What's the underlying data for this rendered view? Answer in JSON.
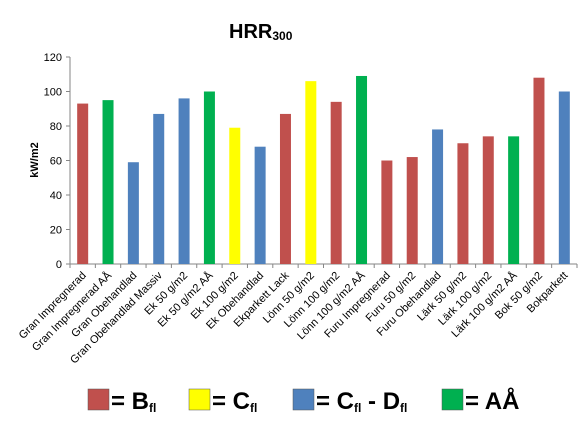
{
  "chart_data": {
    "type": "bar",
    "title": "HRR",
    "title_subscript": "300",
    "ylabel": "kW/m2",
    "xlabel": "",
    "ylim": [
      0,
      120
    ],
    "yticks": [
      "0",
      "20",
      "40",
      "60",
      "80",
      "100",
      "120"
    ],
    "grid": false,
    "categories": [
      "Gran Impregnerad",
      "Gran Impregnerad AÅ",
      "Gran Obehandlad",
      "Gran Obehandlad Massiv",
      "Ek 50 g/m2",
      "Ek 50 g/m2 AÅ",
      "Ek 100 g/m2",
      "Ek Obehandlad",
      "Ekparkett Lack",
      "Lönn 50 g/m2",
      "Lönn 100 g/m2",
      "Lönn 100 g/m2 AÅ",
      "Furu Impregnerad",
      "Furu 50 g/m2",
      "Furu Obehandlad",
      "Lärk 50 g/m2",
      "Lärk 100 g/m2",
      "Lärk 100 g/m2 AÅ",
      "Bok 50 g/m2",
      "Bokparkett"
    ],
    "values": [
      93,
      95,
      59,
      87,
      96,
      100,
      79,
      68,
      87,
      106,
      94,
      109,
      60,
      62,
      78,
      70,
      74,
      74,
      108,
      100
    ],
    "classes": [
      "B",
      "AA",
      "CD",
      "CD",
      "CD",
      "AA",
      "C",
      "CD",
      "B",
      "C",
      "B",
      "AA",
      "B",
      "B",
      "CD",
      "B",
      "B",
      "AA",
      "B",
      "CD"
    ],
    "class_colors": {
      "B": "#c0504d",
      "C": "#ffff00",
      "CD": "#4f81bd",
      "AA": "#00b050"
    },
    "legend": [
      {
        "class": "B",
        "text": "= B",
        "sub": "fl"
      },
      {
        "class": "C",
        "text": "= C",
        "sub": "fl"
      },
      {
        "class": "CD",
        "text": "= C",
        "sub": "fl",
        "text2": " - D",
        "sub2": "fl"
      },
      {
        "class": "AA",
        "text": "= AÅ"
      }
    ]
  }
}
